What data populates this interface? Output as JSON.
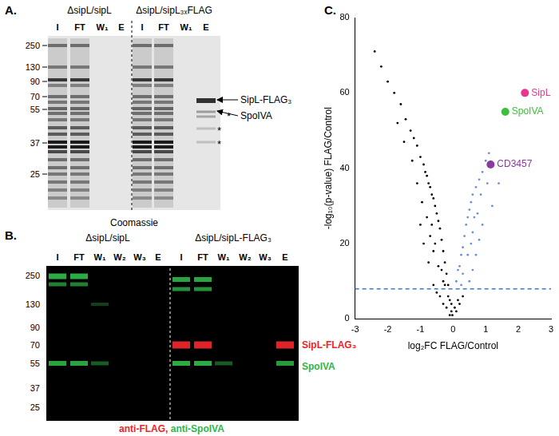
{
  "panel_a": {
    "label": "A.",
    "strains": [
      "ΔsipL/sipL",
      "ΔsipL/sipL₃ₓFLAG"
    ],
    "lanes": [
      [
        "I",
        "FT",
        "W₁",
        "E"
      ],
      [
        "I",
        "FT",
        "W₁",
        "E"
      ]
    ],
    "mw_markers": [
      250,
      130,
      90,
      70,
      55,
      37,
      25
    ],
    "stain": "Coomassie",
    "band_labels": [
      "SipL-FLAG₃",
      "SpoIVA"
    ],
    "marks": [
      "*",
      "*",
      "*"
    ]
  },
  "panel_b": {
    "label": "B.",
    "strains": [
      "ΔsipL/sipL",
      "ΔsipL/sipL-FLAG₃"
    ],
    "lanes": [
      [
        "I",
        "FT",
        "W₁",
        "W₂",
        "W₃",
        "E"
      ],
      [
        "I",
        "FT",
        "W₁",
        "W₂",
        "W₃",
        "E"
      ]
    ],
    "mw_markers": [
      250,
      130,
      90,
      70,
      55,
      37,
      25
    ],
    "band_labels": [
      {
        "text": "SipL-FLAG₃",
        "color": "#e8262b"
      },
      {
        "text": "SpoIVA",
        "color": "#2fb548"
      }
    ],
    "antibodies": [
      {
        "text": "anti-FLAG,",
        "color": "#e8262b"
      },
      {
        "text": "anti-SpoIVA",
        "color": "#2fb548"
      }
    ]
  },
  "chart_data": {
    "type": "scatter",
    "title": "C.",
    "x_label": "log₂FC FLAG/Control",
    "y_label": "-log₁₀(p-value) FLAG/Control",
    "xlim": [
      -3,
      3
    ],
    "xticks": [
      -3,
      -2,
      -1,
      0,
      1,
      2,
      3
    ],
    "ylim": [
      0,
      80
    ],
    "yticks": [
      0,
      20,
      40,
      60,
      80
    ],
    "grid": false,
    "threshold": {
      "y": 8,
      "color": "#3a7ad1",
      "line_style": "dashed"
    },
    "series": [
      {
        "color": "#000000",
        "marker": "circle",
        "x": [
          -0.05,
          -0.1,
          -0.15,
          -0.2,
          -0.25,
          -0.3,
          -0.35,
          -0.4,
          -0.45,
          -0.5,
          -0.55,
          -0.6,
          -0.65,
          -0.7,
          -0.75,
          -0.8,
          -0.85,
          -0.9,
          -1.0,
          -1.1,
          -1.2,
          -1.3,
          -1.45,
          -1.6,
          -1.8,
          -2.0,
          -2.2,
          -2.4,
          -0.1,
          -0.2,
          -0.3,
          -0.4,
          -0.5,
          -0.6,
          -0.3,
          -0.45,
          -0.6,
          -0.7,
          -0.8,
          -0.95,
          -1.1,
          -0.15,
          -0.25,
          -0.05,
          -0.35,
          -0.55,
          -0.65,
          -1.25,
          -1.5,
          -0.75,
          -0.9,
          -1.0,
          -1.7,
          -0.02,
          0.05,
          0.1,
          0.2,
          0.3,
          0.15
        ],
        "values": [
          2,
          5,
          9,
          12,
          15,
          18,
          21,
          24,
          26,
          28,
          30,
          32,
          33,
          35,
          36,
          38,
          39,
          41,
          43,
          46,
          48,
          50,
          53,
          57,
          60,
          63,
          67,
          71,
          1,
          3,
          4,
          6,
          7,
          9,
          10,
          14,
          18,
          22,
          27,
          31,
          36,
          6,
          9,
          4,
          13,
          20,
          25,
          42,
          47,
          15,
          20,
          25,
          52,
          1,
          3,
          2,
          4,
          6,
          5
        ]
      },
      {
        "color": "#6b8fd6",
        "marker": "circle",
        "x": [
          0.1,
          0.15,
          0.2,
          0.25,
          0.3,
          0.35,
          0.4,
          0.45,
          0.5,
          0.55,
          0.6,
          0.7,
          0.8,
          0.9,
          1.0,
          1.1,
          0.5,
          0.6,
          0.7,
          0.8,
          0.9,
          0.3,
          0.45,
          0.6,
          0.75,
          1.2,
          1.4,
          0.25,
          0.55,
          0.65,
          0.85,
          1.05
        ],
        "values": [
          10,
          13,
          14,
          17,
          19,
          22,
          25,
          27,
          29,
          31,
          33,
          35,
          37,
          39,
          42,
          44,
          10,
          13,
          17,
          21,
          25,
          12,
          17,
          23,
          28,
          30,
          36,
          9,
          20,
          27,
          33,
          36
        ]
      }
    ],
    "annotations": [
      {
        "text": "SipL",
        "x": 2.2,
        "y": 60,
        "color": "#e8368f"
      },
      {
        "text": "SpoIVA",
        "x": 1.6,
        "y": 55,
        "color": "#3cbf3c"
      },
      {
        "text": "CD3457",
        "x": 1.15,
        "y": 41,
        "color": "#8a3c9c"
      }
    ]
  }
}
